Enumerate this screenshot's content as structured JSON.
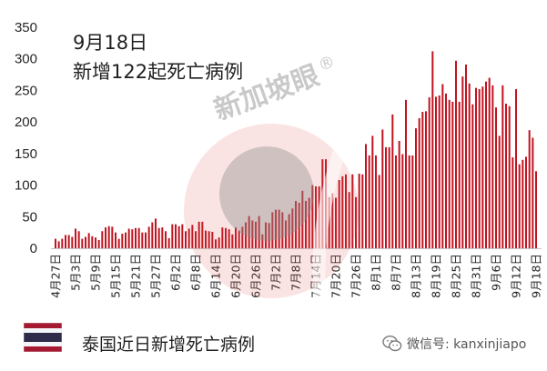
{
  "chart_data": {
    "type": "bar",
    "title": "9月18日",
    "subtitle": "新增122起死亡病例",
    "ylim": [
      0,
      350
    ],
    "y_ticks": [
      0,
      50,
      100,
      150,
      200,
      250,
      300,
      350
    ],
    "x_ticks": [
      "4月27日",
      "5月3日",
      "5月9日",
      "5月15日",
      "5月21日",
      "5月27日",
      "6月2日",
      "6月8日",
      "6月14日",
      "6月20日",
      "6月26日",
      "7月2日",
      "7月8日",
      "7月14日",
      "7月20日",
      "7月26日",
      "8月1日",
      "8月7日",
      "8月13日",
      "8月19日",
      "8月25日",
      "8月31日",
      "9月6日",
      "9月12日",
      "9月18日"
    ],
    "values": [
      15,
      11,
      15,
      21,
      21,
      18,
      31,
      27,
      15,
      18,
      24,
      19,
      17,
      13,
      27,
      33,
      35,
      34,
      25,
      15,
      23,
      25,
      31,
      30,
      32,
      32,
      25,
      25,
      34,
      41,
      47,
      32,
      33,
      27,
      16,
      38,
      38,
      35,
      38,
      27,
      31,
      37,
      27,
      42,
      42,
      28,
      27,
      26,
      14,
      17,
      33,
      32,
      30,
      22,
      33,
      28,
      34,
      41,
      51,
      44,
      42,
      51,
      22,
      41,
      40,
      57,
      61,
      61,
      57,
      44,
      54,
      63,
      75,
      72,
      91,
      75,
      80,
      100,
      98,
      98,
      141,
      141,
      81,
      87,
      80,
      108,
      114,
      117,
      89,
      117,
      81,
      118,
      117,
      165,
      147,
      178,
      147,
      116,
      188,
      160,
      160,
      212,
      147,
      170,
      149,
      235,
      147,
      147,
      190,
      206,
      216,
      217,
      239,
      312,
      240,
      242,
      260,
      245,
      235,
      232,
      297,
      232,
      272,
      291,
      261,
      228,
      254,
      252,
      256,
      264,
      270,
      258,
      223,
      178,
      258,
      229,
      225,
      144,
      252,
      133,
      140,
      145,
      187,
      175,
      122
    ],
    "grid": false,
    "legend": "none"
  },
  "watermark": {
    "text": "新加坡眼",
    "mark": "®"
  },
  "footer": {
    "caption": "泰国近日新增死亡病例",
    "flag_icon": "thailand-flag-icon",
    "wechat_icon": "wechat-icon",
    "wechat_label": "微信号: kanxinjiapo"
  },
  "colors": {
    "bar": "#c0121f",
    "axis": "#c4c4c4",
    "flag_red": "#a51931",
    "flag_blue": "#2d2a4a",
    "watermark_pink": "#e25a5a",
    "watermark_gray": "#8c8c8c"
  }
}
